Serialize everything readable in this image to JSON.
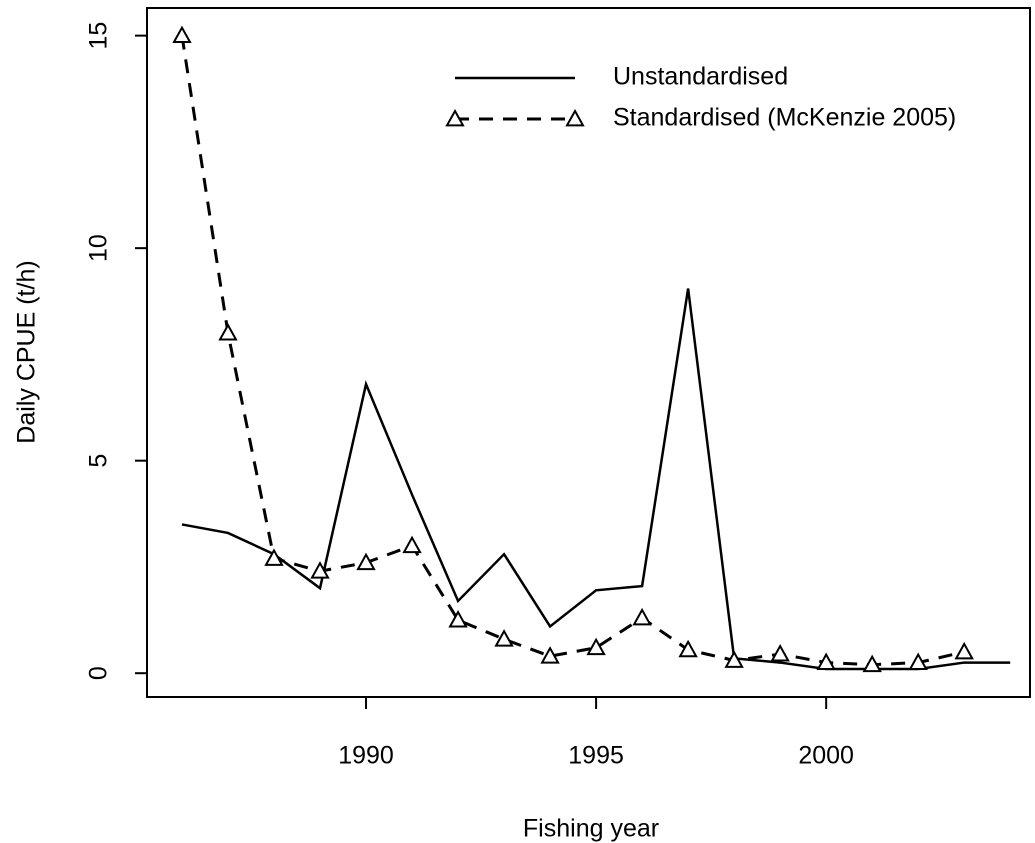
{
  "chart_data": {
    "type": "line",
    "xlabel": "Fishing year",
    "ylabel": "Daily CPUE (t/h)",
    "x": [
      1986,
      1987,
      1988,
      1989,
      1990,
      1991,
      1992,
      1993,
      1994,
      1995,
      1996,
      1997,
      1998,
      1999,
      2000,
      2001,
      2002,
      2003,
      2004
    ],
    "series": [
      {
        "name": "Unstandardised",
        "color": "#000000",
        "dash": false,
        "marker": "none",
        "values": [
          3.5,
          3.3,
          2.8,
          2.0,
          6.8,
          4.2,
          1.7,
          2.8,
          1.1,
          1.95,
          2.05,
          9.05,
          0.35,
          0.25,
          0.1,
          0.1,
          0.1,
          0.25,
          0.25
        ]
      },
      {
        "name": "Standardised (McKenzie 2005)",
        "color": "#000000",
        "dash": true,
        "marker": "triangle",
        "values": [
          15.0,
          8.0,
          2.7,
          2.4,
          2.6,
          3.0,
          1.25,
          0.8,
          0.4,
          0.6,
          1.3,
          0.55,
          0.3,
          0.45,
          0.25,
          0.2,
          0.25,
          0.5,
          null
        ]
      }
    ],
    "xlim": [
      1985.24,
      2004.43
    ],
    "xticks": [
      1990,
      1995,
      2000
    ],
    "ylim": [
      -0.56,
      15.65
    ],
    "yticks": [
      0,
      5,
      10,
      15
    ],
    "grid": false,
    "legend": "top-right"
  }
}
